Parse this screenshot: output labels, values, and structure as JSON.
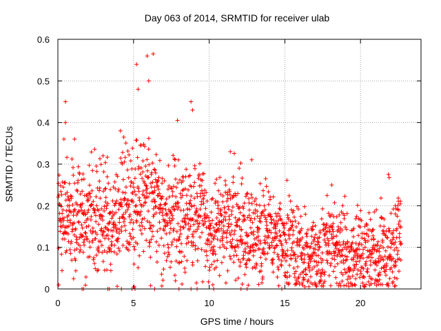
{
  "chart_data": {
    "type": "scatter",
    "title": "Day 063 of 2014, SRMTID for receiver ulab",
    "xlabel": "GPS time / hours",
    "ylabel": "SRMTID / TECUs",
    "xlim": [
      0,
      24
    ],
    "ylim": [
      0,
      0.6
    ],
    "xticks": [
      "0",
      "5",
      "10",
      "15",
      "20"
    ],
    "yticks": [
      "0",
      "0.1",
      "0.2",
      "0.3",
      "0.4",
      "0.5",
      "0.6"
    ],
    "grid": true,
    "marker": "+",
    "series_color": "#ff0000",
    "trend": [
      [
        0.0,
        0.17
      ],
      [
        0.5,
        0.16
      ],
      [
        1.0,
        0.18
      ],
      [
        1.5,
        0.17
      ],
      [
        2.0,
        0.17
      ],
      [
        2.5,
        0.16
      ],
      [
        3.0,
        0.17
      ],
      [
        3.5,
        0.16
      ],
      [
        4.0,
        0.17
      ],
      [
        4.5,
        0.2
      ],
      [
        5.0,
        0.19
      ],
      [
        5.5,
        0.2
      ],
      [
        6.0,
        0.22
      ],
      [
        6.5,
        0.21
      ],
      [
        7.0,
        0.18
      ],
      [
        7.5,
        0.17
      ],
      [
        8.0,
        0.18
      ],
      [
        8.5,
        0.18
      ],
      [
        9.0,
        0.17
      ],
      [
        9.5,
        0.18
      ],
      [
        10.0,
        0.13
      ],
      [
        10.5,
        0.13
      ],
      [
        11.0,
        0.15
      ],
      [
        11.5,
        0.16
      ],
      [
        12.0,
        0.15
      ],
      [
        12.5,
        0.13
      ],
      [
        13.0,
        0.13
      ],
      [
        13.5,
        0.12
      ],
      [
        14.0,
        0.12
      ],
      [
        14.5,
        0.11
      ],
      [
        15.0,
        0.1
      ],
      [
        15.5,
        0.09
      ],
      [
        16.0,
        0.085
      ],
      [
        16.5,
        0.08
      ],
      [
        17.0,
        0.075
      ],
      [
        17.5,
        0.08
      ],
      [
        18.0,
        0.11
      ],
      [
        18.5,
        0.09
      ],
      [
        19.0,
        0.08
      ],
      [
        19.5,
        0.09
      ],
      [
        20.0,
        0.09
      ],
      [
        20.5,
        0.08
      ],
      [
        21.0,
        0.08
      ],
      [
        21.5,
        0.08
      ],
      [
        22.0,
        0.08
      ],
      [
        22.5,
        0.12
      ],
      [
        22.7,
        0.12
      ]
    ],
    "notable_points": [
      {
        "x": 0.5,
        "y": 0.45
      },
      {
        "x": 0.5,
        "y": 0.4
      },
      {
        "x": 0.4,
        "y": 0.36
      },
      {
        "x": 1.1,
        "y": 0.36
      },
      {
        "x": 5.2,
        "y": 0.54
      },
      {
        "x": 5.3,
        "y": 0.48
      },
      {
        "x": 5.9,
        "y": 0.56
      },
      {
        "x": 6.3,
        "y": 0.565
      },
      {
        "x": 6.0,
        "y": 0.5
      },
      {
        "x": 8.8,
        "y": 0.45
      },
      {
        "x": 8.9,
        "y": 0.43
      },
      {
        "x": 11.4,
        "y": 0.33
      },
      {
        "x": 18.1,
        "y": 0.25
      },
      {
        "x": 22.3,
        "y": 0.2
      }
    ],
    "zero_points_x": [
      1.6,
      1.7,
      3.3,
      3.4,
      4.2,
      4.9,
      5.1,
      6.4,
      8.0,
      8.8,
      9.2,
      10.3,
      12.1,
      12.5,
      14.8
    ]
  }
}
